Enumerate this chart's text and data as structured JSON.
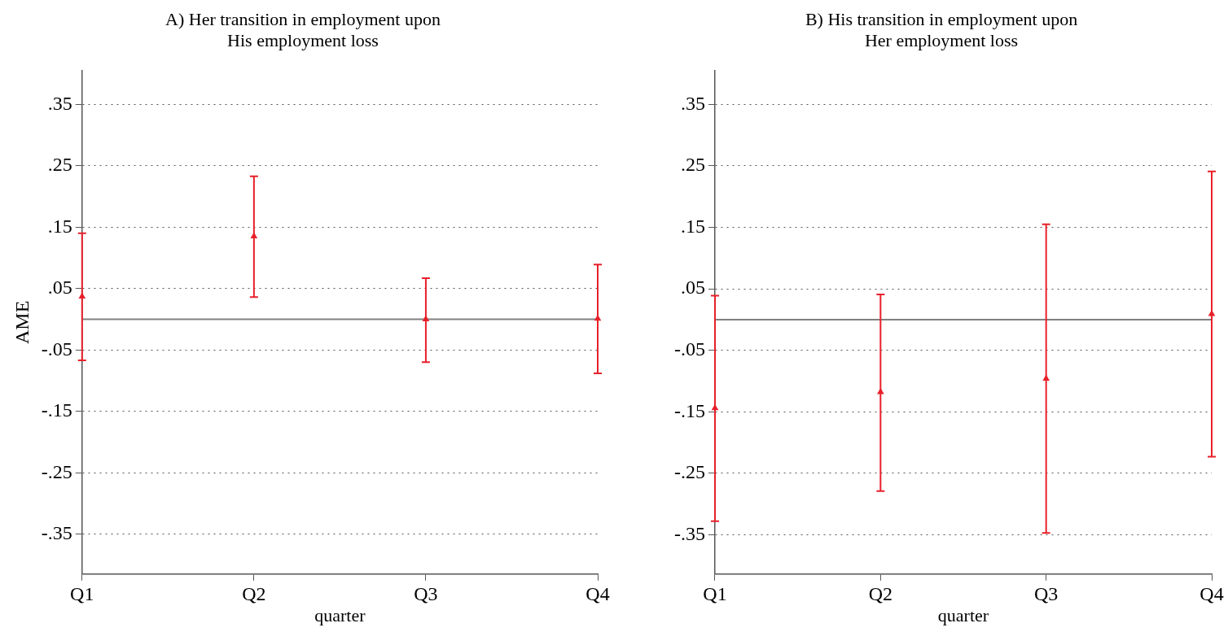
{
  "chart_data": [
    {
      "type": "scatter",
      "title": "A) Her transition in employment upon His employment loss",
      "xlabel": "quarter",
      "ylabel": "AME",
      "categories": [
        "Q1",
        "Q2",
        "Q3",
        "Q4"
      ],
      "series": [
        {
          "color": "#e8202a",
          "values": [
            0.037,
            0.135,
            0.0,
            0.001
          ],
          "errors": [
            [
              -0.067,
              0.14
            ],
            [
              0.036,
              0.233
            ],
            [
              -0.07,
              0.067
            ],
            [
              -0.088,
              0.089
            ]
          ]
        }
      ],
      "marker": "triangle",
      "ylim": [
        -0.415,
        0.405
      ],
      "yticks": [
        {
          "value": 0.35,
          "label": ".35"
        },
        {
          "value": 0.25,
          "label": ".25"
        },
        {
          "value": 0.15,
          "label": ".15"
        },
        {
          "value": 0.05,
          "label": ".05"
        },
        {
          "value": -0.05,
          "label": "-.05"
        },
        {
          "value": -0.15,
          "label": "-.15"
        },
        {
          "value": -0.25,
          "label": "-.25"
        },
        {
          "value": -0.35,
          "label": "-.35"
        }
      ],
      "grid": "y",
      "legend": false,
      "ref_lines": [
        {
          "axis": "y",
          "value": 0,
          "color": "#808080"
        }
      ]
    },
    {
      "type": "scatter",
      "title": "B) His transition in employment upon Her employment loss",
      "xlabel": "quarter",
      "categories": [
        "Q1",
        "Q2",
        "Q3",
        "Q4"
      ],
      "series": [
        {
          "color": "#e8202a",
          "values": [
            -0.144,
            -0.118,
            -0.096,
            0.009
          ],
          "errors": [
            [
              -0.328,
              0.039
            ],
            [
              -0.279,
              0.041
            ],
            [
              -0.347,
              0.155
            ],
            [
              -0.223,
              0.241
            ]
          ]
        }
      ],
      "marker": "triangle",
      "ylim": [
        -0.414,
        0.405
      ],
      "yticks": [
        {
          "value": 0.35,
          "label": ".35"
        },
        {
          "value": 0.25,
          "label": ".25"
        },
        {
          "value": 0.15,
          "label": ".15"
        },
        {
          "value": 0.05,
          "label": ".05"
        },
        {
          "value": -0.05,
          "label": "-.05"
        },
        {
          "value": -0.15,
          "label": "-.15"
        },
        {
          "value": -0.25,
          "label": "-.25"
        },
        {
          "value": -0.35,
          "label": "-.35"
        }
      ],
      "grid": "y",
      "legend": false,
      "ref_lines": [
        {
          "axis": "y",
          "value": 0,
          "color": "#808080"
        }
      ]
    }
  ]
}
